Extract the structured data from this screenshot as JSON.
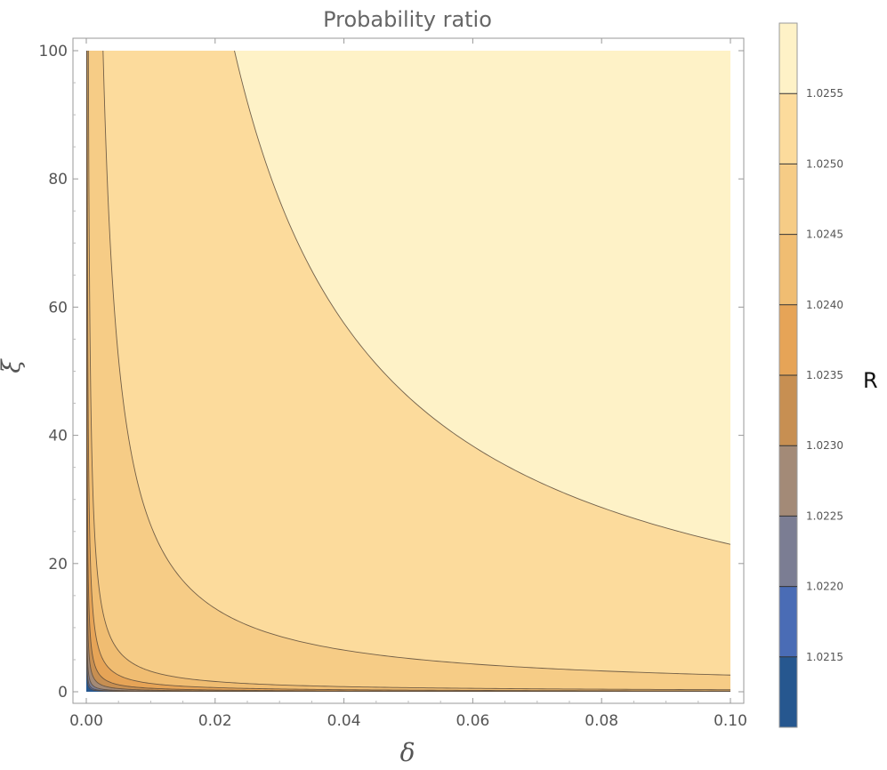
{
  "chart_data": {
    "type": "contour",
    "title": "Probability ratio",
    "xlabel": "δ",
    "ylabel": "ξ",
    "xlim": [
      0,
      0.1
    ],
    "ylim": [
      0,
      100
    ],
    "x_ticks": [
      "0.00",
      "0.02",
      "0.04",
      "0.06",
      "0.08",
      "0.10"
    ],
    "y_ticks": [
      "0",
      "20",
      "40",
      "60",
      "80",
      "100"
    ],
    "colorbar": {
      "title": "R",
      "range": [
        1.021,
        1.026
      ],
      "levels": [
        1.0215,
        1.022,
        1.0225,
        1.023,
        1.0235,
        1.024,
        1.0245,
        1.025,
        1.0255
      ],
      "level_labels": [
        "1.0215",
        "1.0220",
        "1.0225",
        "1.0230",
        "1.0235",
        "1.0240",
        "1.0245",
        "1.0250",
        "1.0255"
      ],
      "band_colors": [
        "#26578f",
        "#4a6cb5",
        "#7b7d93",
        "#a38a77",
        "#c78f52",
        "#e6a457",
        "#f0bd72",
        "#f6cc86",
        "#fcdb9c",
        "#fef2c7"
      ]
    },
    "contour_curves_hyperbola_k": [
      0.0003,
      0.0005,
      0.001,
      0.0025,
      0.0055,
      0.013,
      0.032,
      0.26,
      2.3
    ],
    "colors": {
      "frame": "#999999",
      "contour_line": "#5a4a3a"
    }
  }
}
